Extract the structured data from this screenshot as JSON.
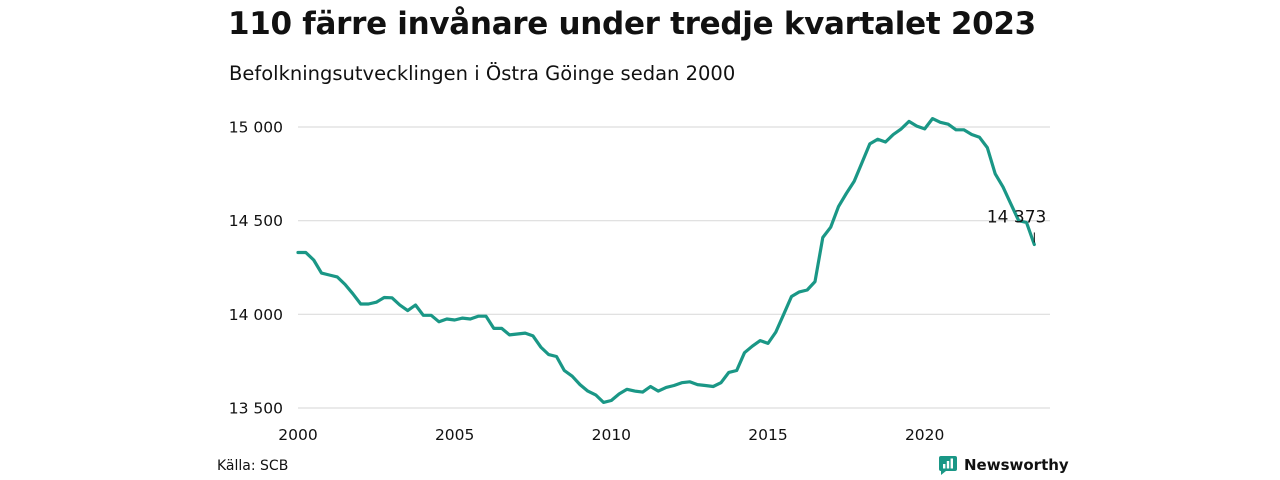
{
  "colors": {
    "series": "#1a9786",
    "grid": "#dddddd",
    "text": "#111111"
  },
  "source": "Källa: SCB",
  "brand": {
    "name": "Newsworthy",
    "icon": "newsworthy-logo-icon"
  },
  "chart_data": {
    "type": "line",
    "title": "110 färre invånare under tredje kvartalet 2023",
    "subtitle": "Befolkningsutvecklingen i Östra Göinge sedan 2000",
    "xlabel": "",
    "ylabel": "",
    "xlim": [
      2000,
      2024
    ],
    "ylim": [
      13500,
      15000
    ],
    "y_ticks": [
      13500,
      14000,
      14500,
      15000
    ],
    "y_tick_labels": [
      "13 500",
      "14 000",
      "14 500",
      "15 000"
    ],
    "x_ticks": [
      2000,
      2005,
      2010,
      2015,
      2020
    ],
    "x_tick_labels": [
      "2000",
      "2005",
      "2010",
      "2015",
      "2020"
    ],
    "grid": "horizontal",
    "end_label": "14 373",
    "series": [
      {
        "x": [
          "2000 Q1",
          "2000 Q2",
          "2000 Q3",
          "2000 Q4",
          "2001 Q1",
          "2001 Q2",
          "2001 Q3",
          "2001 Q4",
          "2002 Q1",
          "2002 Q2",
          "2002 Q3",
          "2002 Q4",
          "2003 Q1",
          "2003 Q2",
          "2003 Q3",
          "2003 Q4",
          "2004 Q1",
          "2004 Q2",
          "2004 Q3",
          "2004 Q4",
          "2005 Q1",
          "2005 Q2",
          "2005 Q3",
          "2005 Q4",
          "2006 Q1",
          "2006 Q2",
          "2006 Q3",
          "2006 Q4",
          "2007 Q1",
          "2007 Q2",
          "2007 Q3",
          "2007 Q4",
          "2008 Q1",
          "2008 Q2",
          "2008 Q3",
          "2008 Q4",
          "2009 Q1",
          "2009 Q2",
          "2009 Q3",
          "2009 Q4",
          "2010 Q1",
          "2010 Q2",
          "2010 Q3",
          "2010 Q4",
          "2011 Q1",
          "2011 Q2",
          "2011 Q3",
          "2011 Q4",
          "2012 Q1",
          "2012 Q2",
          "2012 Q3",
          "2012 Q4",
          "2013 Q1",
          "2013 Q2",
          "2013 Q3",
          "2013 Q4",
          "2014 Q1",
          "2014 Q2",
          "2014 Q3",
          "2014 Q4",
          "2015 Q1",
          "2015 Q2",
          "2015 Q3",
          "2015 Q4",
          "2016 Q1",
          "2016 Q2",
          "2016 Q3",
          "2016 Q4",
          "2017 Q1",
          "2017 Q2",
          "2017 Q3",
          "2017 Q4",
          "2018 Q1",
          "2018 Q2",
          "2018 Q3",
          "2018 Q4",
          "2019 Q1",
          "2019 Q2",
          "2019 Q3",
          "2019 Q4",
          "2020 Q1",
          "2020 Q2",
          "2020 Q3",
          "2020 Q4",
          "2021 Q1",
          "2021 Q2",
          "2021 Q3",
          "2021 Q4",
          "2022 Q1",
          "2022 Q2",
          "2022 Q3",
          "2022 Q4",
          "2023 Q1",
          "2023 Q2",
          "2023 Q3"
        ],
        "values": [
          14330,
          14330,
          14290,
          14220,
          14210,
          14200,
          14160,
          14110,
          14055,
          14055,
          14065,
          14090,
          14088,
          14050,
          14020,
          14050,
          13995,
          13995,
          13960,
          13975,
          13970,
          13980,
          13975,
          13990,
          13990,
          13925,
          13925,
          13890,
          13895,
          13900,
          13885,
          13825,
          13785,
          13775,
          13700,
          13670,
          13625,
          13590,
          13570,
          13530,
          13540,
          13575,
          13600,
          13590,
          13585,
          13615,
          13590,
          13610,
          13620,
          13635,
          13640,
          13625,
          13620,
          13615,
          13635,
          13690,
          13700,
          13795,
          13830,
          13860,
          13845,
          13905,
          14000,
          14095,
          14120,
          14130,
          14175,
          14410,
          14465,
          14575,
          14645,
          14710,
          14810,
          14910,
          14935,
          14920,
          14960,
          14990,
          15030,
          15005,
          14990,
          15045,
          15025,
          15015,
          14985,
          14985,
          14960,
          14945,
          14890,
          14750,
          14680,
          14590,
          14500,
          14490,
          14373
        ]
      }
    ]
  }
}
